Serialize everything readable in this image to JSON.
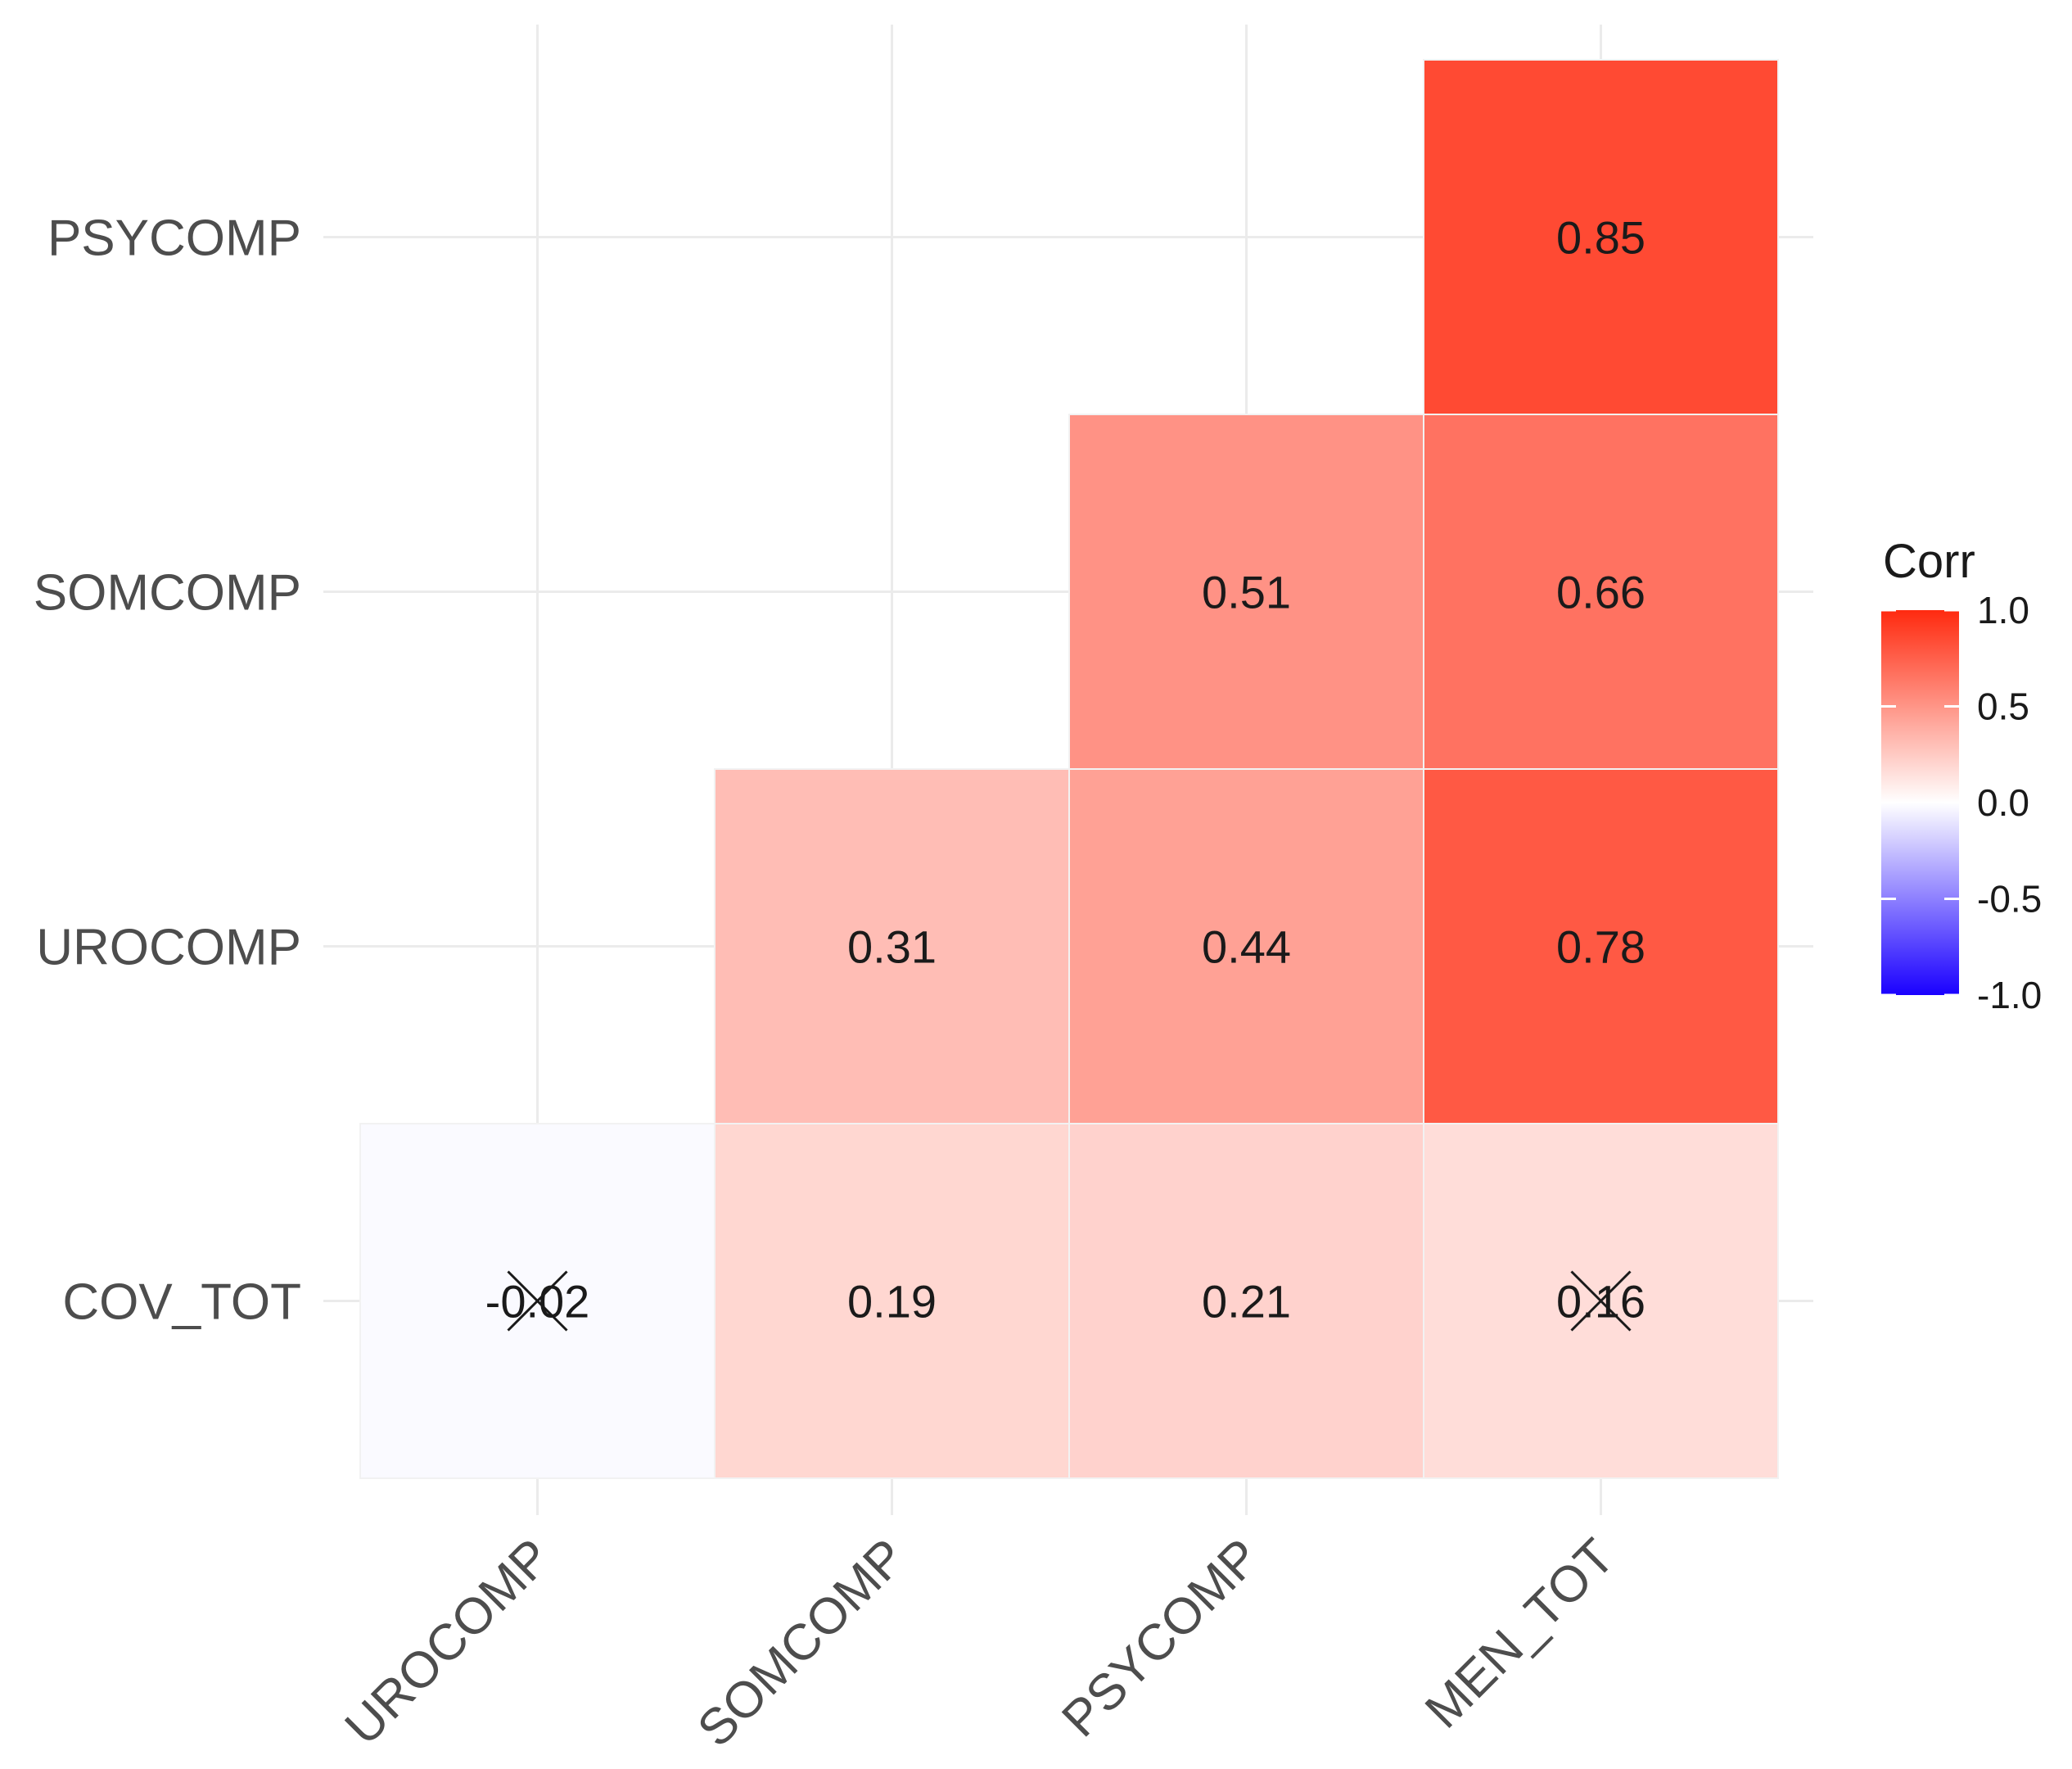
{
  "chart_data": {
    "type": "heatmap",
    "variant": "lower-triangle correlation matrix",
    "x_categories": [
      "UROCOMP",
      "SOMCOMP",
      "PSYCOMP",
      "MEN_TOT"
    ],
    "y_categories": [
      "PSYCOMP",
      "SOMCOMP",
      "UROCOMP",
      "COV_TOT"
    ],
    "cells": [
      {
        "x": "MEN_TOT",
        "y": "PSYCOMP",
        "value": 0.85,
        "label": "0.85",
        "crossed": false
      },
      {
        "x": "PSYCOMP",
        "y": "SOMCOMP",
        "value": 0.51,
        "label": "0.51",
        "crossed": false
      },
      {
        "x": "MEN_TOT",
        "y": "SOMCOMP",
        "value": 0.66,
        "label": "0.66",
        "crossed": false
      },
      {
        "x": "SOMCOMP",
        "y": "UROCOMP",
        "value": 0.31,
        "label": "0.31",
        "crossed": false
      },
      {
        "x": "PSYCOMP",
        "y": "UROCOMP",
        "value": 0.44,
        "label": "0.44",
        "crossed": false
      },
      {
        "x": "MEN_TOT",
        "y": "UROCOMP",
        "value": 0.78,
        "label": "0.78",
        "crossed": false
      },
      {
        "x": "UROCOMP",
        "y": "COV_TOT",
        "value": -0.02,
        "label": "-0.02",
        "crossed": true
      },
      {
        "x": "SOMCOMP",
        "y": "COV_TOT",
        "value": 0.19,
        "label": "0.19",
        "crossed": false
      },
      {
        "x": "PSYCOMP",
        "y": "COV_TOT",
        "value": 0.21,
        "label": "0.21",
        "crossed": false
      },
      {
        "x": "MEN_TOT",
        "y": "COV_TOT",
        "value": 0.16,
        "label": "0.16",
        "crossed": true
      }
    ],
    "legend": {
      "title": "Corr",
      "position": "right",
      "range": [
        -1.0,
        1.0
      ],
      "ticks": [
        1.0,
        0.5,
        0.0,
        -0.5,
        -1.0
      ],
      "tick_labels": [
        "1.0",
        "0.5",
        "0.0",
        "-0.5",
        "-1.0"
      ]
    },
    "colors": {
      "high": "#ff2a0f",
      "mid": "#ffffff",
      "low": "#1a00ff",
      "grid": "#ebebeb",
      "axis_text": "#4d4d4d",
      "cell_text": "#1a1a1a"
    },
    "grid": true,
    "xlabel": "",
    "ylabel": "",
    "title": ""
  }
}
